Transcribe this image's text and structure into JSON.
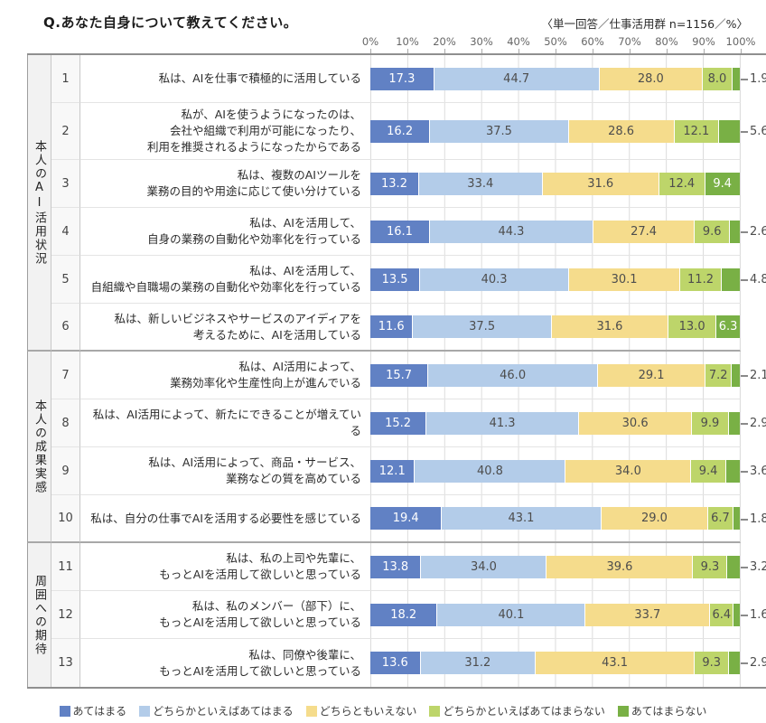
{
  "title": "Q.あなた自身について教えてください。",
  "note": "〈単一回答／仕事活用群 n=1156／%〉",
  "legend": [
    {
      "label": "あてはまる",
      "color": "#6181c4"
    },
    {
      "label": "どちらかといえばあてはまる",
      "color": "#b3cce9"
    },
    {
      "label": "どちらともいえない",
      "color": "#f5dc8c"
    },
    {
      "label": "どちらかといえばあてはまらない",
      "color": "#bdd56a"
    },
    {
      "label": "あてはまらない",
      "color": "#79b045"
    }
  ],
  "chart_data": {
    "type": "bar",
    "stacked": true,
    "orientation": "horizontal",
    "unit": "%",
    "xlim": [
      0,
      100
    ],
    "x_ticks": [
      "0%",
      "10%",
      "20%",
      "30%",
      "40%",
      "50%",
      "60%",
      "70%",
      "80%",
      "90%",
      "100%"
    ],
    "series": [
      "あてはまる",
      "どちらかといえばあてはまる",
      "どちらともいえない",
      "どちらかといえばあてはまらない",
      "あてはまらない"
    ],
    "groups": [
      {
        "name": "本人のAI活用状況",
        "rows": [
          {
            "no": "1",
            "label": "私は、AIを仕事で積極的に活用している",
            "values": [
              17.3,
              44.7,
              28.0,
              8.0,
              1.9
            ]
          },
          {
            "no": "2",
            "label": "私が、AIを使うようになったのは、\n会社や組織で利用が可能になったり、\n利用を推奨されるようになったからである",
            "values": [
              16.2,
              37.5,
              28.6,
              12.1,
              5.6
            ]
          },
          {
            "no": "3",
            "label": "私は、複数のAIツールを\n業務の目的や用途に応じて使い分けている",
            "values": [
              13.2,
              33.4,
              31.6,
              12.4,
              9.4
            ]
          },
          {
            "no": "4",
            "label": "私は、AIを活用して、\n自身の業務の自動化や効率化を行っている",
            "values": [
              16.1,
              44.3,
              27.4,
              9.6,
              2.6
            ]
          },
          {
            "no": "5",
            "label": "私は、AIを活用して、\n自組織や自職場の業務の自動化や効率化を行っている",
            "values": [
              13.5,
              40.3,
              30.1,
              11.2,
              4.8
            ]
          },
          {
            "no": "6",
            "label": "私は、新しいビジネスやサービスのアイディアを\n考えるために、AIを活用している",
            "values": [
              11.6,
              37.5,
              31.6,
              13.0,
              6.3
            ]
          }
        ]
      },
      {
        "name": "本人の成果実感",
        "rows": [
          {
            "no": "7",
            "label": "私は、AI活用によって、\n業務効率化や生産性向上が進んでいる",
            "values": [
              15.7,
              46.0,
              29.1,
              7.2,
              2.1
            ]
          },
          {
            "no": "8",
            "label": "私は、AI活用によって、新たにできることが増えている",
            "values": [
              15.2,
              41.3,
              30.6,
              9.9,
              2.9
            ]
          },
          {
            "no": "9",
            "label": "私は、AI活用によって、商品・サービス、\n業務などの質を高めている",
            "values": [
              12.1,
              40.8,
              34.0,
              9.4,
              3.6
            ]
          },
          {
            "no": "10",
            "label": "私は、自分の仕事でAIを活用する必要性を感じている",
            "values": [
              19.4,
              43.1,
              29.0,
              6.7,
              1.8
            ]
          }
        ]
      },
      {
        "name": "周囲への期待",
        "rows": [
          {
            "no": "11",
            "label": "私は、私の上司や先輩に、\nもっとAIを活用して欲しいと思っている",
            "values": [
              13.8,
              34.0,
              39.6,
              9.3,
              3.2
            ]
          },
          {
            "no": "12",
            "label": "私は、私のメンバー（部下）に、\nもっとAIを活用して欲しいと思っている",
            "values": [
              18.2,
              40.1,
              33.7,
              6.4,
              1.6
            ]
          },
          {
            "no": "13",
            "label": "私は、同僚や後輩に、\nもっとAIを活用して欲しいと思っている",
            "values": [
              13.6,
              31.2,
              43.1,
              9.3,
              2.9
            ]
          }
        ]
      }
    ]
  }
}
